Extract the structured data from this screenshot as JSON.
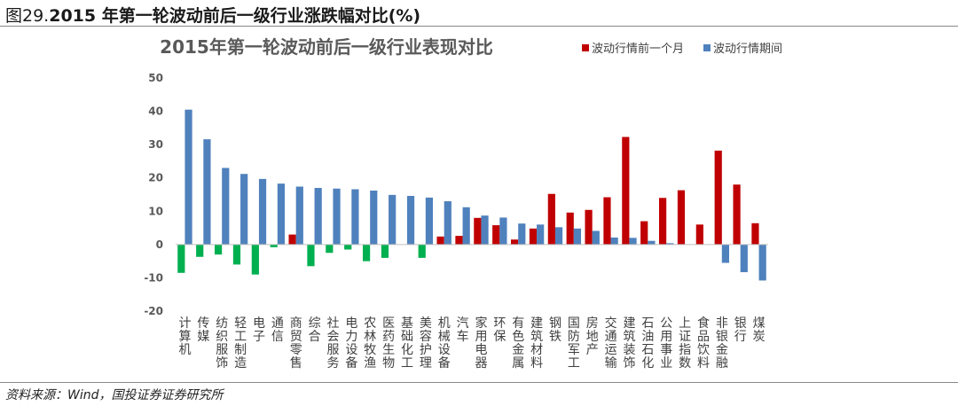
{
  "figure": {
    "number": "图29.",
    "title": "2015 年第一轮波动前后一级行业涨跌幅对比(%)",
    "source": "资料来源：Wind，国投证券证券研究所"
  },
  "colors": {
    "before": "#C00000",
    "during": "#4F81BD",
    "negative_during": "#00B050"
  },
  "chart_data": {
    "type": "bar",
    "title": "2015年第一轮波动前后一级行业表现对比",
    "xlabel": "",
    "ylabel": "",
    "ylim": [
      -20,
      50
    ],
    "yticks": [
      -20,
      -10,
      0,
      10,
      20,
      30,
      40,
      50
    ],
    "ytick_labels": [
      "-20",
      "-10",
      "0",
      "10",
      "20",
      "30",
      "40",
      "50"
    ],
    "grid": false,
    "legend_position": "top-right",
    "categories": [
      "计算机",
      "传媒",
      "纺织服饰",
      "轻工制造",
      "电子",
      "通信",
      "商贸零售",
      "综合",
      "社会服务",
      "电力设备",
      "农林牧渔",
      "医药生物",
      "基础化工",
      "美容护理",
      "机械设备",
      "汽车",
      "家用电器",
      "环保",
      "有色金属",
      "建筑材料",
      "钢铁",
      "国防军工",
      "房地产",
      "交通运输",
      "建筑装饰",
      "石油石化",
      "公用事业",
      "上证指数",
      "食品饮料",
      "非银金融",
      "银行",
      "煤炭"
    ],
    "series": [
      {
        "name": "波动行情前一个月",
        "values": [
          -8.5,
          -3.7,
          -3.0,
          -6.0,
          -9.0,
          -0.8,
          3.0,
          -6.5,
          -2.5,
          -1.5,
          -5.0,
          -4.0,
          0,
          -4.0,
          2.4,
          2.6,
          8.0,
          5.8,
          1.5,
          4.8,
          15.2,
          9.6,
          10.4,
          14.2,
          32.3,
          7.0,
          14.0,
          16.3,
          6.0,
          28.2,
          18.0,
          6.4
        ]
      },
      {
        "name": "波动行情期间",
        "values": [
          40.5,
          31.6,
          23.0,
          21.2,
          19.7,
          18.3,
          17.4,
          17.0,
          16.8,
          16.6,
          16.2,
          14.9,
          14.6,
          14.1,
          13.0,
          11.2,
          8.7,
          8.1,
          6.3,
          6.0,
          5.2,
          4.8,
          4.1,
          2.1,
          2.0,
          1.1,
          0.4,
          0,
          0,
          -5.5,
          -8.3,
          -10.8
        ]
      }
    ]
  }
}
